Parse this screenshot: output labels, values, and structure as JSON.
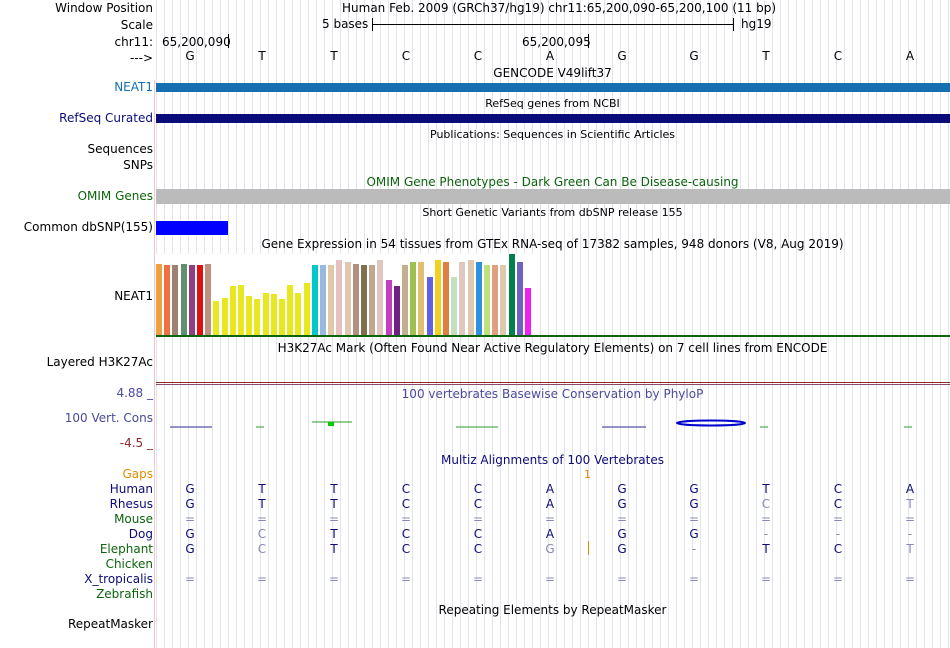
{
  "header": {
    "window_position_label": "Window Position",
    "window_position_text": "Human Feb. 2009 (GRCh37/hg19)   chr11:65,200,090-65,200,100 (11 bp)",
    "scale_label": "Scale",
    "scale_bar_text": "5 bases",
    "scale_assembly": "hg19",
    "chrom_label": "chr11:",
    "coord_left": "65,200,090",
    "coord_mid": "65,200,095",
    "arrow_label": "--->",
    "bases": [
      "G",
      "T",
      "T",
      "C",
      "C",
      "A",
      "G",
      "G",
      "T",
      "C",
      "A"
    ]
  },
  "tracks": {
    "gencode": {
      "label": "NEAT1",
      "title": "GENCODE V49lift37",
      "color": "#1470b0"
    },
    "refseq": {
      "label": "RefSeq Curated",
      "title": "RefSeq genes from NCBI",
      "color": "#0c0c78"
    },
    "publications": {
      "title": "Publications: Sequences in Scientific Articles",
      "label1": "Sequences",
      "label2": "SNPs"
    },
    "omim": {
      "label": "OMIM Genes",
      "title": "OMIM Gene Phenotypes - Dark Green Can Be Disease-causing",
      "color": "#bbbbbb"
    },
    "dbsnp": {
      "label": "Common dbSNP(155)",
      "title": "Short Genetic Variants from dbSNP release 155",
      "color": "#0000ff"
    },
    "gtex": {
      "label": "NEAT1",
      "title": "Gene Expression in 54 tissues from GTEx RNA-seq of 17382 samples, 948 donors (V8, Aug 2019)"
    },
    "h3k27ac": {
      "label": "Layered H3K27Ac",
      "title": "H3K27Ac Mark (Often Found Near Active Regulatory Elements) on 7 cell lines from ENCODE"
    },
    "phylop": {
      "label": "100 Vert. Cons",
      "title": "100 vertebrates Basewise Conservation by PhyloP",
      "max": "4.88 _",
      "min": "-4.5 _"
    },
    "multiz": {
      "title": "Multiz Alignments of 100 Vertebrates",
      "gaps_label": "Gaps",
      "gap_count": "1",
      "species": [
        {
          "name": "Human",
          "bases": [
            "G",
            "T",
            "T",
            "C",
            "C",
            "A",
            "G",
            "G",
            "T",
            "C",
            "A"
          ]
        },
        {
          "name": "Rhesus",
          "bases": [
            "G",
            "T",
            "T",
            "C",
            "C",
            "A",
            "G",
            "G",
            "C",
            "C",
            "T"
          ]
        },
        {
          "name": "Mouse",
          "bases": [
            "=",
            "=",
            "=",
            "=",
            "=",
            "=",
            "=",
            "=",
            "=",
            "=",
            "="
          ]
        },
        {
          "name": "Dog",
          "bases": [
            "G",
            "C",
            "T",
            "C",
            "C",
            "A",
            "G",
            "G",
            "-",
            "-",
            "-"
          ]
        },
        {
          "name": "Elephant",
          "bases": [
            "G",
            "C",
            "T",
            "C",
            "C",
            "G",
            "G",
            "-",
            "T",
            "C",
            "T"
          ]
        },
        {
          "name": "Chicken",
          "bases": [
            "",
            "",
            "",
            "",
            "",
            "",
            "",
            "",
            "",
            "",
            ""
          ]
        },
        {
          "name": "X_tropicalis",
          "bases": [
            "=",
            "=",
            "=",
            "=",
            "=",
            "=",
            "=",
            "=",
            "=",
            "=",
            "="
          ]
        },
        {
          "name": "Zebrafish",
          "bases": [
            "",
            "",
            "",
            "",
            "",
            "",
            "",
            "",
            "",
            "",
            ""
          ]
        }
      ]
    },
    "repeatmasker": {
      "label": "RepeatMasker",
      "title": "Repeating Elements by RepeatMasker"
    }
  },
  "colors": {
    "label_blue": "#1470b0",
    "label_navy": "#0c0c78",
    "label_green": "#0c640c",
    "label_orange": "#e08c00",
    "phylop_purple": "#4a4a9a",
    "phylop_red": "#8c2a2a",
    "multiz_green": "#0c640c",
    "multiz_navy": "#0c0c78"
  }
}
